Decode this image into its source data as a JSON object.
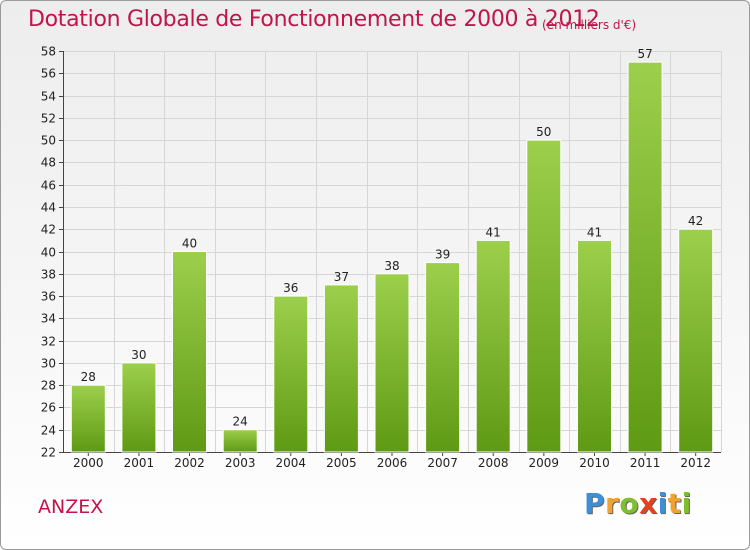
{
  "header": {
    "title": "Dotation Globale de Fonctionnement de 2000 à 2012",
    "unit_note": "(en milliers d'€)"
  },
  "footer": {
    "town": "ANZEX",
    "logo": {
      "text": "Proxiti",
      "letters": [
        "P",
        "r",
        "o",
        "x",
        "i",
        "t",
        "i"
      ]
    }
  },
  "colors": {
    "title": "#c0144a",
    "bar_top": "#9ccf4c",
    "bar_bottom": "#5f9a14",
    "grid": "#d6d6d6"
  },
  "chart_data": {
    "type": "bar",
    "title": "Dotation Globale de Fonctionnement de 2000 à 2012",
    "subtitle": "(en milliers d'€)",
    "xlabel": "",
    "ylabel": "",
    "categories": [
      "2000",
      "2001",
      "2002",
      "2003",
      "2004",
      "2005",
      "2006",
      "2007",
      "2008",
      "2009",
      "2010",
      "2011",
      "2012"
    ],
    "values": [
      28,
      30,
      40,
      24,
      36,
      37,
      38,
      39,
      41,
      50,
      41,
      57,
      42
    ],
    "ylim": [
      22,
      58
    ],
    "yticks": [
      22,
      24,
      26,
      28,
      30,
      32,
      34,
      36,
      38,
      40,
      42,
      44,
      46,
      48,
      50,
      52,
      54,
      56,
      58
    ],
    "grid": true,
    "data_labels": true
  }
}
